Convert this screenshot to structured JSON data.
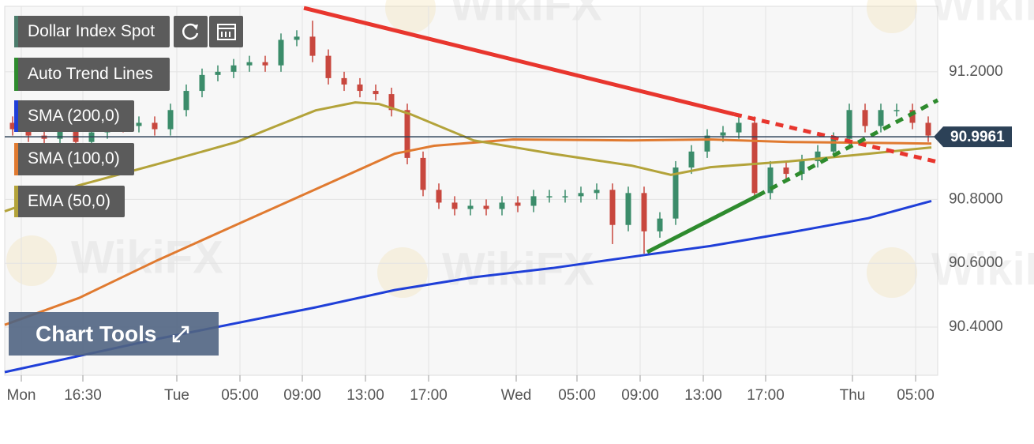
{
  "chart_data": {
    "type": "candlestick",
    "title": "Dollar Index Spot",
    "up_color": "#3b8c6a",
    "down_color": "#c8473e",
    "x": [
      0.5,
      1.5,
      2.5,
      3.5,
      4.5,
      5.5,
      6.5,
      7.5,
      8.5,
      9.5,
      10.5,
      11.5,
      12.5,
      13.5,
      14.5,
      15.5,
      16.5,
      17.5,
      18.5,
      19.5,
      20.5,
      21.5,
      22.5,
      23.5,
      24.5,
      25.5,
      26.5,
      27.5,
      28.5,
      29.5,
      30.5,
      31.5,
      32.5,
      33.5,
      34.5,
      35.5,
      36.5,
      37.5,
      38.5,
      39.5,
      40.5,
      41.5,
      42.5,
      43.5,
      44.5,
      45.5,
      46.5,
      47.5,
      48.5,
      49.5,
      50.5,
      51.5,
      52.5,
      53.5,
      54.5,
      55.5,
      56.5,
      57.5,
      58.5
    ],
    "open": [
      91.04,
      91.02,
      91.0,
      90.99,
      91.02,
      90.98,
      91.01,
      91.07,
      91.03,
      91.04,
      91.02,
      91.08,
      91.14,
      91.19,
      91.2,
      91.22,
      91.23,
      91.22,
      91.3,
      91.31,
      91.25,
      91.18,
      91.16,
      91.14,
      91.13,
      91.08,
      90.93,
      90.83,
      90.79,
      90.77,
      90.78,
      90.77,
      90.79,
      90.78,
      90.81,
      90.81,
      90.81,
      90.82,
      90.83,
      90.72,
      90.82,
      90.7,
      90.74,
      90.9,
      90.95,
      91.0,
      91.01,
      91.04,
      90.82,
      90.9,
      90.88,
      90.92,
      90.95,
      90.99,
      91.08,
      91.03,
      91.08,
      91.08,
      91.04
    ],
    "high": [
      91.06,
      91.04,
      91.02,
      91.04,
      91.04,
      91.03,
      91.09,
      91.09,
      91.06,
      91.06,
      91.1,
      91.16,
      91.21,
      91.22,
      91.24,
      91.25,
      91.25,
      91.32,
      91.33,
      91.36,
      91.27,
      91.2,
      91.18,
      91.16,
      91.15,
      91.1,
      90.95,
      90.85,
      90.81,
      90.8,
      90.8,
      90.81,
      90.81,
      90.83,
      90.83,
      90.83,
      90.84,
      90.85,
      90.85,
      90.84,
      90.84,
      90.76,
      90.92,
      90.97,
      91.02,
      91.03,
      91.06,
      91.06,
      90.92,
      90.92,
      90.94,
      90.97,
      91.01,
      91.1,
      91.1,
      91.1,
      91.1,
      91.1,
      91.06
    ],
    "low": [
      91.0,
      90.98,
      90.97,
      90.97,
      90.96,
      90.96,
      90.99,
      91.01,
      91.01,
      91.0,
      91.0,
      91.06,
      91.12,
      91.17,
      91.18,
      91.2,
      91.2,
      91.2,
      91.28,
      91.23,
      91.16,
      91.14,
      91.12,
      91.11,
      91.06,
      90.91,
      90.81,
      90.77,
      90.75,
      90.75,
      90.75,
      90.75,
      90.76,
      90.76,
      90.79,
      90.79,
      90.79,
      90.8,
      90.66,
      90.7,
      90.63,
      90.68,
      90.72,
      90.88,
      90.93,
      90.98,
      90.99,
      90.8,
      90.8,
      90.86,
      90.86,
      90.9,
      90.93,
      90.97,
      91.01,
      91.01,
      91.06,
      91.02,
      90.98
    ],
    "close": [
      91.02,
      91.0,
      90.99,
      91.02,
      90.98,
      91.01,
      91.07,
      91.03,
      91.04,
      91.02,
      91.08,
      91.14,
      91.19,
      91.2,
      91.22,
      91.23,
      91.22,
      91.3,
      91.31,
      91.25,
      91.18,
      91.16,
      91.14,
      91.13,
      91.08,
      90.93,
      90.83,
      90.79,
      90.77,
      90.78,
      90.77,
      90.79,
      90.78,
      90.81,
      90.81,
      90.81,
      90.82,
      90.83,
      90.72,
      90.82,
      90.7,
      90.74,
      90.9,
      90.95,
      91.0,
      91.01,
      91.04,
      90.82,
      90.9,
      90.88,
      90.92,
      90.95,
      90.99,
      91.08,
      91.03,
      91.08,
      91.08,
      91.04,
      91.0
    ],
    "series": [
      {
        "name": "SMA (200,0)",
        "color": "#1f3fd8",
        "x": [
          0,
          9.7,
          19.7,
          24.7,
          29.7,
          34.7,
          40.7,
          44.7,
          49.7,
          54.7,
          58.7
        ],
        "values": [
          90.259,
          90.363,
          90.462,
          90.516,
          90.556,
          90.585,
          90.627,
          90.654,
          90.696,
          90.741,
          90.795
        ]
      },
      {
        "name": "SMA (100,0)",
        "color": "#e07a30",
        "x": [
          0,
          4.7,
          9.7,
          14.7,
          19.7,
          24.7,
          27.2,
          32.2,
          39.7,
          44.7,
          49.7,
          58.7
        ],
        "values": [
          90.407,
          90.491,
          90.61,
          90.721,
          90.832,
          90.943,
          90.968,
          90.988,
          90.985,
          90.988,
          90.98,
          90.975
        ]
      },
      {
        "name": "EMA (50,0)",
        "color": "#b3a33a",
        "x": [
          0,
          4.7,
          9.7,
          14.7,
          17.2,
          19.7,
          22.2,
          23.7,
          25.7,
          29.7,
          34.7,
          39.7,
          42.2,
          44.7,
          49.7,
          54.7,
          58.7
        ],
        "values": [
          90.763,
          90.844,
          90.911,
          90.98,
          91.03,
          91.079,
          91.104,
          91.099,
          91.067,
          90.985,
          90.943,
          90.906,
          90.877,
          90.901,
          90.919,
          90.943,
          90.963
        ]
      }
    ],
    "trend_lines": {
      "name": "Auto Trend Lines",
      "color": "#2e8b2e",
      "lines": [
        {
          "color": "#e8362e",
          "x": [
            18.95,
            46.2,
            58.95
          ],
          "values": [
            91.4,
            91.067,
            90.919
          ]
        },
        {
          "color": "#2e8b2e",
          "x": [
            40.7,
            47.7,
            59.1
          ],
          "values": [
            90.635,
            90.812,
            91.111
          ]
        }
      ]
    },
    "current_price": 90.9961,
    "price_color": "#2c4157",
    "xlim": [
      0,
      59.1
    ],
    "ylim": [
      90.249,
      91.405
    ],
    "yticks": [
      {
        "value": 90.4,
        "label": "90.4000"
      },
      {
        "value": 90.6,
        "label": "90.6000"
      },
      {
        "value": 90.8,
        "label": "90.8000"
      },
      {
        "value": 91.2,
        "label": "91.2000"
      }
    ],
    "xticks": [
      {
        "value": 1.05,
        "label": "Mon"
      },
      {
        "value": 4.95,
        "label": "16:30"
      },
      {
        "value": 10.9,
        "label": "Tue"
      },
      {
        "value": 14.9,
        "label": "05:00"
      },
      {
        "value": 18.85,
        "label": "09:00"
      },
      {
        "value": 22.85,
        "label": "13:00"
      },
      {
        "value": 26.85,
        "label": "17:00"
      },
      {
        "value": 32.4,
        "label": "Wed"
      },
      {
        "value": 36.25,
        "label": "05:00"
      },
      {
        "value": 40.25,
        "label": "09:00"
      },
      {
        "value": 44.25,
        "label": "13:00"
      },
      {
        "value": 48.2,
        "label": "17:00"
      },
      {
        "value": 53.7,
        "label": "Thu"
      },
      {
        "value": 57.7,
        "label": "05:00"
      }
    ],
    "grid": true,
    "chart_tools": "Chart Tools",
    "watermark": "WikiFX"
  }
}
